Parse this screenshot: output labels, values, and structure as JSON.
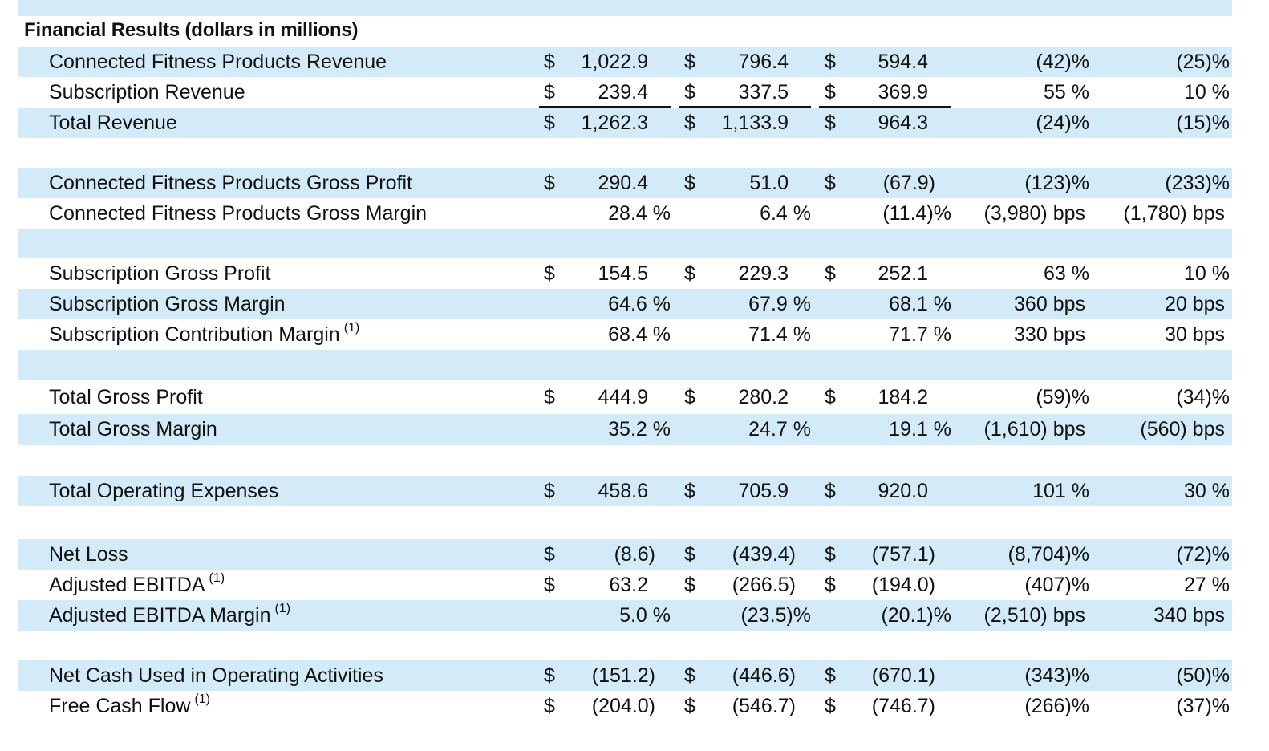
{
  "title": "Financial Results (dollars in millions)",
  "rows": [
    {
      "label": "Connected Fitness Products Revenue",
      "sup": "",
      "shade": true,
      "d": [
        "$",
        "$",
        "$"
      ],
      "v": [
        "1,022.9",
        "796.4",
        "594.4"
      ],
      "c1": "(42)%",
      "c2": "(25)%"
    },
    {
      "label": "Subscription Revenue",
      "sup": "",
      "shade": false,
      "d": [
        "$",
        "$",
        "$"
      ],
      "v": [
        "239.4",
        "337.5",
        "369.9"
      ],
      "c1": "55 %",
      "c2": "10 %"
    },
    {
      "label": "Total Revenue",
      "sup": "",
      "shade": true,
      "d": [
        "$",
        "$",
        "$"
      ],
      "v": [
        "1,262.3",
        "1,133.9",
        "964.3"
      ],
      "c1": "(24)%",
      "c2": "(15)%"
    },
    {
      "label": "Connected Fitness Products Gross Profit",
      "sup": "",
      "shade": true,
      "d": [
        "$",
        "$",
        "$"
      ],
      "v": [
        "290.4",
        "51.0",
        "(67.9)"
      ],
      "c1": "(123)%",
      "c2": "(233)%"
    },
    {
      "label": "Connected Fitness Products Gross Margin",
      "sup": "",
      "shade": false,
      "d": [
        "",
        "",
        ""
      ],
      "v": [
        "28.4 %",
        "6.4 %",
        "(11.4)%"
      ],
      "c1": "(3,980) bps",
      "c2": "(1,780) bps"
    },
    {
      "label": "Subscription Gross Profit",
      "sup": "",
      "shade": false,
      "d": [
        "$",
        "$",
        "$"
      ],
      "v": [
        "154.5",
        "229.3",
        "252.1"
      ],
      "c1": "63 %",
      "c2": "10 %"
    },
    {
      "label": "Subscription Gross Margin",
      "sup": "",
      "shade": true,
      "d": [
        "",
        "",
        ""
      ],
      "v": [
        "64.6 %",
        "67.9 %",
        "68.1 %"
      ],
      "c1": "360 bps",
      "c2": "20 bps"
    },
    {
      "label": "Subscription Contribution Margin",
      "sup": "(1)",
      "shade": false,
      "d": [
        "",
        "",
        ""
      ],
      "v": [
        "68.4 %",
        "71.4 %",
        "71.7 %"
      ],
      "c1": "330 bps",
      "c2": "30 bps"
    },
    {
      "label": "Total Gross Profit",
      "sup": "",
      "shade": false,
      "d": [
        "$",
        "$",
        "$"
      ],
      "v": [
        "444.9",
        "280.2",
        "184.2"
      ],
      "c1": "(59)%",
      "c2": "(34)%"
    },
    {
      "label": "Total Gross Margin",
      "sup": "",
      "shade": true,
      "d": [
        "",
        "",
        ""
      ],
      "v": [
        "35.2 %",
        "24.7 %",
        "19.1 %"
      ],
      "c1": "(1,610) bps",
      "c2": "(560) bps"
    },
    {
      "label": "Total Operating Expenses",
      "sup": "",
      "shade": true,
      "d": [
        "$",
        "$",
        "$"
      ],
      "v": [
        "458.6",
        "705.9",
        "920.0"
      ],
      "c1": "101 %",
      "c2": "30 %"
    },
    {
      "label": "Net Loss",
      "sup": "",
      "shade": true,
      "d": [
        "$",
        "$",
        "$"
      ],
      "v": [
        "(8.6)",
        "(439.4)",
        "(757.1)"
      ],
      "c1": "(8,704)%",
      "c2": "(72)%"
    },
    {
      "label": "Adjusted EBITDA",
      "sup": "(1)",
      "shade": false,
      "d": [
        "$",
        "$",
        "$"
      ],
      "v": [
        "63.2",
        "(266.5)",
        "(194.0)"
      ],
      "c1": "(407)%",
      "c2": "27 %"
    },
    {
      "label": "Adjusted EBITDA Margin",
      "sup": "(1)",
      "shade": true,
      "d": [
        "",
        "",
        ""
      ],
      "v": [
        "5.0 %",
        "(23.5)%",
        "(20.1)%"
      ],
      "c1": "(2,510) bps",
      "c2": "340 bps"
    },
    {
      "label": "Net Cash Used in Operating Activities",
      "sup": "",
      "shade": true,
      "d": [
        "$",
        "$",
        "$"
      ],
      "v": [
        "(151.2)",
        "(446.6)",
        "(670.1)"
      ],
      "c1": "(343)%",
      "c2": "(50)%"
    },
    {
      "label": "Free Cash Flow",
      "sup": "(1)",
      "shade": false,
      "d": [
        "$",
        "$",
        "$"
      ],
      "v": [
        "(204.0)",
        "(546.7)",
        "(746.7)"
      ],
      "c1": "(266)%",
      "c2": "(37)%"
    }
  ],
  "spacers": [
    {
      "shade": false
    },
    {
      "shade": true
    },
    {
      "shade": true
    },
    {
      "shade": false
    },
    {
      "shade": false
    },
    {
      "shade": false
    }
  ]
}
